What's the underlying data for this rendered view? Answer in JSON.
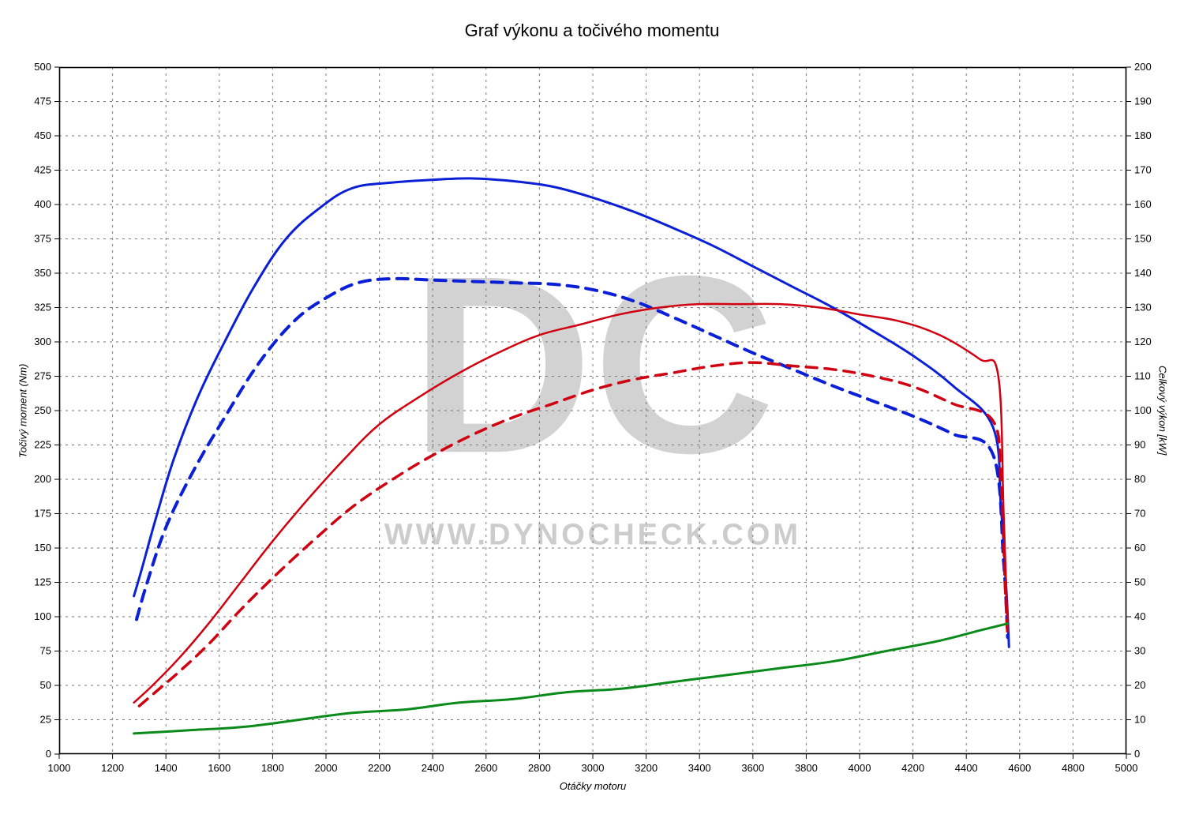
{
  "title": "Graf výkonu a točivého momentu",
  "xAxis": {
    "label": "Otáčky motoru",
    "min": 1000,
    "max": 5000,
    "tickStep": 200,
    "label_fontsize": 13,
    "tick_fontsize": 13
  },
  "yLeft": {
    "label": "Točivý moment (Nm)",
    "min": 0,
    "max": 500,
    "tickStep": 25,
    "label_fontsize": 13,
    "tick_fontsize": 13
  },
  "yRight": {
    "label": "Celkový výkon [kW]",
    "min": 0,
    "max": 200,
    "tickStep": 10,
    "label_fontsize": 13,
    "tick_fontsize": 13
  },
  "border_color": "#000000",
  "grid": {
    "enabled": true,
    "color": "#777777",
    "dash": "3,5",
    "width": 1
  },
  "background_color": "#ffffff",
  "watermark": {
    "letters": "DC",
    "url": "WWW.DYNOCHECK.COM",
    "color": "#bbbbbb"
  },
  "series": [
    {
      "name": "torque_tuned",
      "axis": "left",
      "color": "#0b1fd6",
      "width": 3,
      "dash": null,
      "points": [
        [
          1280,
          115
        ],
        [
          1310,
          135
        ],
        [
          1360,
          170
        ],
        [
          1430,
          215
        ],
        [
          1520,
          260
        ],
        [
          1620,
          300
        ],
        [
          1730,
          340
        ],
        [
          1850,
          375
        ],
        [
          1980,
          398
        ],
        [
          2100,
          412
        ],
        [
          2250,
          416
        ],
        [
          2400,
          418
        ],
        [
          2550,
          419
        ],
        [
          2700,
          417
        ],
        [
          2850,
          413
        ],
        [
          3000,
          405
        ],
        [
          3150,
          395
        ],
        [
          3300,
          383
        ],
        [
          3450,
          370
        ],
        [
          3600,
          355
        ],
        [
          3750,
          340
        ],
        [
          3900,
          325
        ],
        [
          4050,
          308
        ],
        [
          4200,
          290
        ],
        [
          4350,
          268
        ],
        [
          4500,
          238
        ],
        [
          4530,
          180
        ],
        [
          4550,
          120
        ],
        [
          4560,
          78
        ]
      ]
    },
    {
      "name": "torque_stock",
      "axis": "left",
      "color": "#0b1fd6",
      "width": 4,
      "dash": "14,10",
      "points": [
        [
          1290,
          98
        ],
        [
          1330,
          125
        ],
        [
          1400,
          165
        ],
        [
          1500,
          205
        ],
        [
          1620,
          245
        ],
        [
          1750,
          285
        ],
        [
          1880,
          315
        ],
        [
          2000,
          332
        ],
        [
          2120,
          343
        ],
        [
          2250,
          346
        ],
        [
          2400,
          345
        ],
        [
          2550,
          344
        ],
        [
          2700,
          343
        ],
        [
          2850,
          342
        ],
        [
          3000,
          338
        ],
        [
          3150,
          330
        ],
        [
          3300,
          318
        ],
        [
          3450,
          305
        ],
        [
          3600,
          292
        ],
        [
          3750,
          280
        ],
        [
          3900,
          268
        ],
        [
          4050,
          257
        ],
        [
          4200,
          246
        ],
        [
          4350,
          233
        ],
        [
          4500,
          218
        ],
        [
          4540,
          140
        ],
        [
          4555,
          85
        ]
      ]
    },
    {
      "name": "power_tuned",
      "axis": "right",
      "color": "#d00010",
      "width": 2.5,
      "dash": null,
      "points": [
        [
          1280,
          15
        ],
        [
          1350,
          20
        ],
        [
          1450,
          28
        ],
        [
          1560,
          38
        ],
        [
          1680,
          50
        ],
        [
          1800,
          62
        ],
        [
          1930,
          74
        ],
        [
          2070,
          86
        ],
        [
          2200,
          96
        ],
        [
          2350,
          104
        ],
        [
          2500,
          111
        ],
        [
          2650,
          117
        ],
        [
          2800,
          122
        ],
        [
          2950,
          125
        ],
        [
          3100,
          128
        ],
        [
          3250,
          130
        ],
        [
          3400,
          131
        ],
        [
          3550,
          131
        ],
        [
          3700,
          131
        ],
        [
          3850,
          130
        ],
        [
          4000,
          128
        ],
        [
          4150,
          126
        ],
        [
          4300,
          122
        ],
        [
          4450,
          115
        ],
        [
          4520,
          110
        ],
        [
          4540,
          70
        ],
        [
          4555,
          36
        ]
      ]
    },
    {
      "name": "power_stock",
      "axis": "right",
      "color": "#d00010",
      "width": 3.5,
      "dash": "14,10",
      "points": [
        [
          1300,
          14
        ],
        [
          1360,
          18
        ],
        [
          1450,
          24
        ],
        [
          1560,
          32
        ],
        [
          1680,
          42
        ],
        [
          1810,
          52
        ],
        [
          1950,
          62
        ],
        [
          2100,
          72
        ],
        [
          2250,
          80
        ],
        [
          2400,
          87
        ],
        [
          2550,
          93
        ],
        [
          2700,
          98
        ],
        [
          2850,
          102
        ],
        [
          3000,
          106
        ],
        [
          3150,
          109
        ],
        [
          3300,
          111
        ],
        [
          3450,
          113
        ],
        [
          3600,
          114
        ],
        [
          3750,
          113
        ],
        [
          3900,
          112
        ],
        [
          4050,
          110
        ],
        [
          4200,
          107
        ],
        [
          4350,
          102
        ],
        [
          4500,
          97
        ],
        [
          4530,
          80
        ],
        [
          4545,
          50
        ],
        [
          4555,
          34
        ]
      ]
    },
    {
      "name": "power_loss",
      "axis": "right",
      "color": "#0a8a1a",
      "width": 3,
      "dash": null,
      "points": [
        [
          1280,
          6
        ],
        [
          1500,
          7
        ],
        [
          1700,
          8
        ],
        [
          1900,
          10
        ],
        [
          2100,
          12
        ],
        [
          2300,
          13
        ],
        [
          2500,
          15
        ],
        [
          2700,
          16
        ],
        [
          2900,
          18
        ],
        [
          3100,
          19
        ],
        [
          3300,
          21
        ],
        [
          3500,
          23
        ],
        [
          3700,
          25
        ],
        [
          3900,
          27
        ],
        [
          4100,
          30
        ],
        [
          4300,
          33
        ],
        [
          4450,
          36
        ],
        [
          4555,
          38
        ]
      ]
    }
  ]
}
